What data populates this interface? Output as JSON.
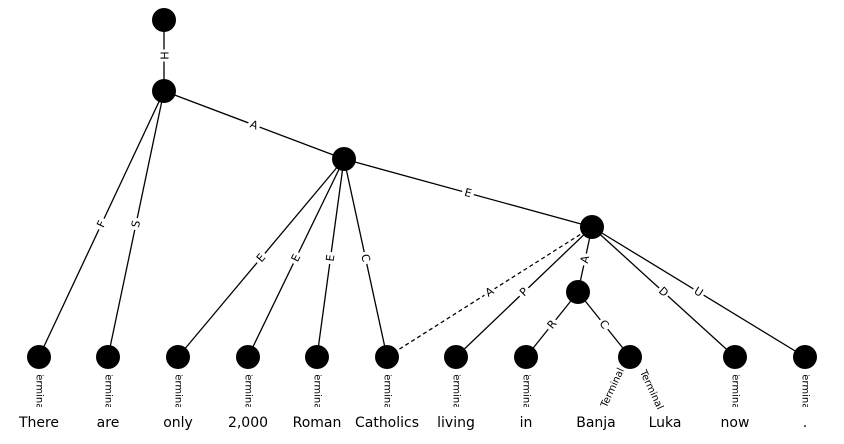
{
  "nodes": [
    "root",
    "n1",
    "n2",
    "n3",
    "n4",
    "t0",
    "t1",
    "t2",
    "t3",
    "t4",
    "t5",
    "t6",
    "t7",
    "t8",
    "t9",
    "t10",
    "t11"
  ],
  "edges": [
    {
      "from": "root",
      "to": "n1",
      "label": "H",
      "dashed": false
    },
    {
      "from": "n1",
      "to": "n2",
      "label": "A",
      "dashed": false
    },
    {
      "from": "n2",
      "to": "n3",
      "label": "E",
      "dashed": false
    },
    {
      "from": "n1",
      "to": "t0",
      "label": "F",
      "dashed": false
    },
    {
      "from": "n1",
      "to": "t1",
      "label": "S",
      "dashed": false
    },
    {
      "from": "n2",
      "to": "t2",
      "label": "E",
      "dashed": false
    },
    {
      "from": "n2",
      "to": "t3",
      "label": "E",
      "dashed": false
    },
    {
      "from": "n2",
      "to": "t4",
      "label": "E",
      "dashed": false
    },
    {
      "from": "n2",
      "to": "t5",
      "label": "C",
      "dashed": false
    },
    {
      "from": "n3",
      "to": "t5",
      "label": "A",
      "dashed": true
    },
    {
      "from": "n3",
      "to": "t6",
      "label": "P",
      "dashed": false
    },
    {
      "from": "n3",
      "to": "n4",
      "label": "A",
      "dashed": false
    },
    {
      "from": "n4",
      "to": "t7",
      "label": "R",
      "dashed": false
    },
    {
      "from": "n4",
      "to": "t8",
      "label": "C",
      "dashed": false
    },
    {
      "from": "n3",
      "to": "t10",
      "label": "D",
      "dashed": false
    },
    {
      "from": "n3",
      "to": "t11",
      "label": "U",
      "dashed": false
    }
  ],
  "terminal_label": "Terminal",
  "words": [
    "There",
    "are",
    "only",
    "2,000",
    "Roman",
    "Catholics",
    "living",
    "in",
    "Banja",
    "Luka",
    "now",
    "."
  ]
}
